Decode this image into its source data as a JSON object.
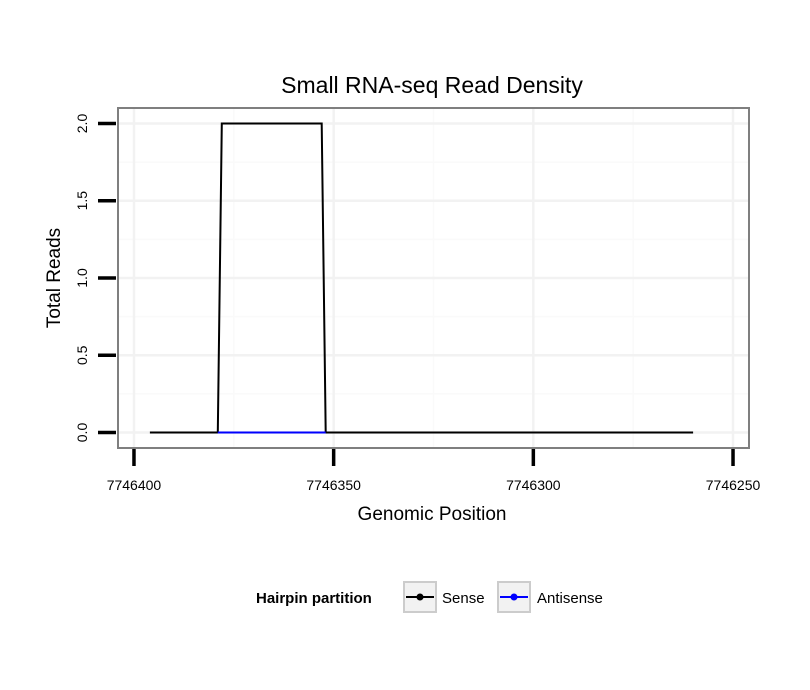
{
  "chart_data": {
    "type": "line",
    "title": "Small RNA-seq Read Density",
    "xlabel": "Genomic Position",
    "ylabel": "Total Reads",
    "xlim": [
      7746404,
      7746246
    ],
    "ylim": [
      -0.1,
      2.1
    ],
    "x_reversed": true,
    "x_ticks": [
      7746400,
      7746350,
      7746300,
      7746250
    ],
    "x_tick_labels": [
      "7746400",
      "7746350",
      "7746300",
      "7746250"
    ],
    "y_ticks": [
      0,
      0.5,
      1,
      1.5,
      2
    ],
    "y_tick_labels": [
      "0.0",
      "0.5",
      "1.0",
      "1.5",
      "2.0"
    ],
    "grid": true,
    "series": [
      {
        "name": "Sense",
        "color": "#000000",
        "x": [
          7746396,
          7746379,
          7746378,
          7746353,
          7746352,
          7746260
        ],
        "y": [
          0,
          0,
          2,
          2,
          0,
          0
        ]
      },
      {
        "name": "Antisense",
        "color": "#0000ff",
        "x": [
          7746379,
          7746352
        ],
        "y": [
          0,
          0
        ]
      }
    ],
    "legend": {
      "title": "Hairpin partition",
      "position": "bottom",
      "entries": [
        "Sense",
        "Antisense"
      ]
    }
  }
}
